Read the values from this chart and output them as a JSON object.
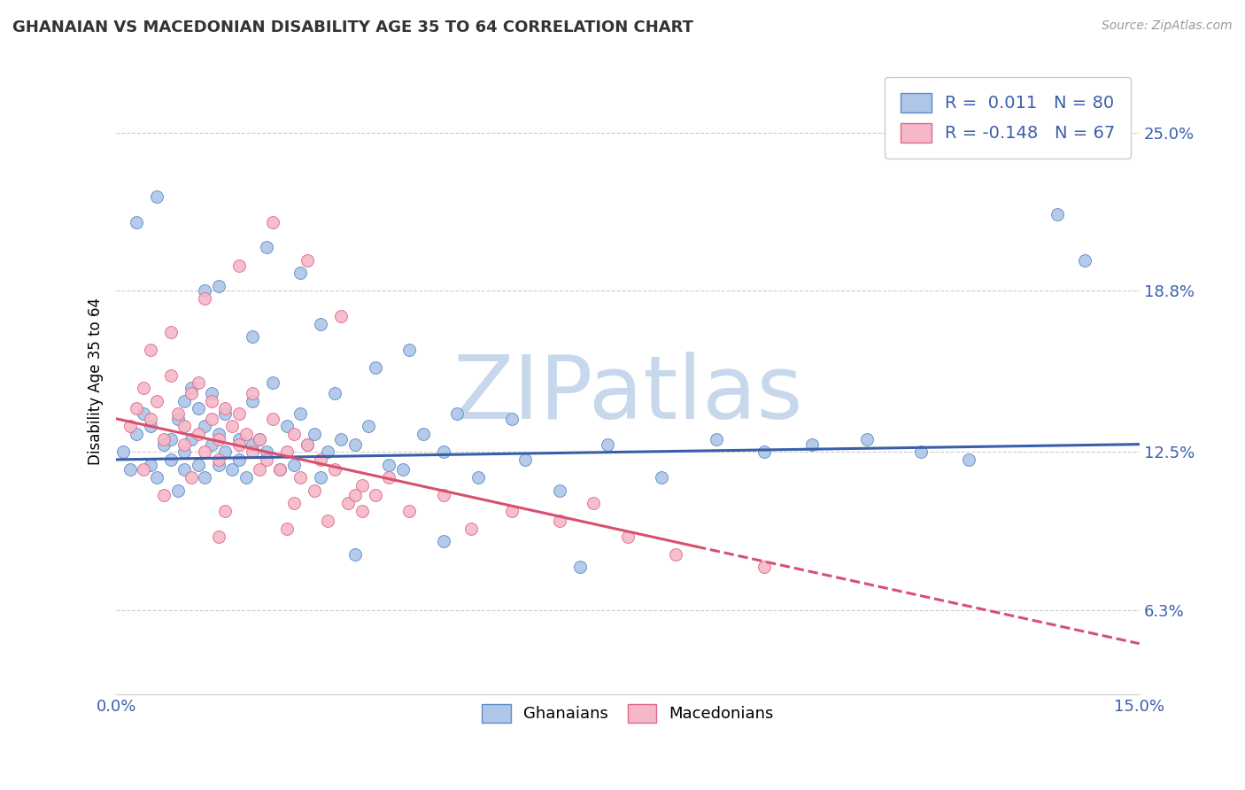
{
  "title": "GHANAIAN VS MACEDONIAN DISABILITY AGE 35 TO 64 CORRELATION CHART",
  "source_text": "Source: ZipAtlas.com",
  "ylabel": "Disability Age 35 to 64",
  "xmin": 0.0,
  "xmax": 15.0,
  "ymin": 3.0,
  "ymax": 27.5,
  "yticks": [
    6.3,
    12.5,
    18.8,
    25.0
  ],
  "ytick_labels": [
    "6.3%",
    "12.5%",
    "18.8%",
    "25.0%"
  ],
  "xtick_labels": [
    "0.0%",
    "15.0%"
  ],
  "blue_R": 0.011,
  "blue_N": 80,
  "pink_R": -0.148,
  "pink_N": 67,
  "blue_color": "#aec6e8",
  "pink_color": "#f5b8c8",
  "blue_edge_color": "#5b8cc8",
  "pink_edge_color": "#e06888",
  "blue_line_color": "#3a5faa",
  "pink_line_color": "#d85070",
  "watermark": "ZIPatlas",
  "watermark_color": "#c8d8ec",
  "legend_blue_label": "Ghanaians",
  "legend_pink_label": "Macedonians",
  "blue_scatter_x": [
    0.1,
    0.2,
    0.3,
    0.4,
    0.5,
    0.5,
    0.6,
    0.7,
    0.8,
    0.8,
    0.9,
    0.9,
    1.0,
    1.0,
    1.0,
    1.1,
    1.1,
    1.2,
    1.2,
    1.3,
    1.3,
    1.4,
    1.4,
    1.5,
    1.5,
    1.6,
    1.6,
    1.7,
    1.8,
    1.8,
    1.9,
    2.0,
    2.0,
    2.1,
    2.2,
    2.3,
    2.4,
    2.5,
    2.6,
    2.7,
    2.8,
    2.9,
    3.0,
    3.1,
    3.2,
    3.3,
    3.5,
    3.7,
    4.0,
    4.2,
    4.5,
    4.8,
    5.0,
    5.3,
    5.8,
    6.0,
    6.5,
    7.2,
    8.0,
    8.8,
    9.5,
    10.2,
    11.0,
    11.8,
    12.5,
    1.5,
    2.2,
    3.0,
    3.8,
    4.3,
    0.3,
    0.6,
    1.3,
    2.0,
    2.7,
    3.5,
    4.8,
    6.8,
    13.8,
    14.2
  ],
  "blue_scatter_y": [
    12.5,
    11.8,
    13.2,
    14.0,
    12.0,
    13.5,
    11.5,
    12.8,
    13.0,
    12.2,
    11.0,
    13.8,
    14.5,
    12.5,
    11.8,
    15.0,
    13.0,
    12.0,
    14.2,
    11.5,
    13.5,
    12.8,
    14.8,
    12.0,
    13.2,
    14.0,
    12.5,
    11.8,
    13.0,
    12.2,
    11.5,
    14.5,
    12.8,
    13.0,
    12.5,
    15.2,
    11.8,
    13.5,
    12.0,
    14.0,
    12.8,
    13.2,
    11.5,
    12.5,
    14.8,
    13.0,
    12.8,
    13.5,
    12.0,
    11.8,
    13.2,
    12.5,
    14.0,
    11.5,
    13.8,
    12.2,
    11.0,
    12.8,
    11.5,
    13.0,
    12.5,
    12.8,
    13.0,
    12.5,
    12.2,
    19.0,
    20.5,
    17.5,
    15.8,
    16.5,
    21.5,
    22.5,
    18.8,
    17.0,
    19.5,
    8.5,
    9.0,
    8.0,
    21.8,
    20.0
  ],
  "pink_scatter_x": [
    0.2,
    0.3,
    0.4,
    0.5,
    0.6,
    0.7,
    0.8,
    0.9,
    1.0,
    1.0,
    1.1,
    1.2,
    1.2,
    1.3,
    1.4,
    1.4,
    1.5,
    1.5,
    1.6,
    1.7,
    1.8,
    1.8,
    1.9,
    2.0,
    2.0,
    2.1,
    2.2,
    2.3,
    2.4,
    2.5,
    2.6,
    2.7,
    2.8,
    2.9,
    3.0,
    3.2,
    3.4,
    3.6,
    3.8,
    4.0,
    4.3,
    4.8,
    5.2,
    5.8,
    6.5,
    7.0,
    7.5,
    8.2,
    0.5,
    0.8,
    1.3,
    1.8,
    2.3,
    2.8,
    3.3,
    0.4,
    0.7,
    1.1,
    1.6,
    2.1,
    2.6,
    3.1,
    3.6,
    9.5,
    1.5,
    2.5,
    3.5
  ],
  "pink_scatter_y": [
    13.5,
    14.2,
    15.0,
    13.8,
    14.5,
    13.0,
    15.5,
    14.0,
    13.5,
    12.8,
    14.8,
    13.2,
    15.2,
    12.5,
    13.8,
    14.5,
    13.0,
    12.2,
    14.2,
    13.5,
    12.8,
    14.0,
    13.2,
    12.5,
    14.8,
    13.0,
    12.2,
    13.8,
    11.8,
    12.5,
    13.2,
    11.5,
    12.8,
    11.0,
    12.2,
    11.8,
    10.5,
    11.2,
    10.8,
    11.5,
    10.2,
    10.8,
    9.5,
    10.2,
    9.8,
    10.5,
    9.2,
    8.5,
    16.5,
    17.2,
    18.5,
    19.8,
    21.5,
    20.0,
    17.8,
    11.8,
    10.8,
    11.5,
    10.2,
    11.8,
    10.5,
    9.8,
    10.2,
    8.0,
    9.2,
    9.5,
    10.8
  ],
  "blue_trend_x0": 0.0,
  "blue_trend_x1": 15.0,
  "blue_trend_y0": 12.2,
  "blue_trend_y1": 12.8,
  "pink_solid_x0": 0.0,
  "pink_solid_x1": 8.5,
  "pink_solid_y0": 13.8,
  "pink_solid_y1": 8.8,
  "pink_dash_x0": 8.5,
  "pink_dash_x1": 15.0,
  "pink_dash_y0": 8.8,
  "pink_dash_y1": 5.0
}
